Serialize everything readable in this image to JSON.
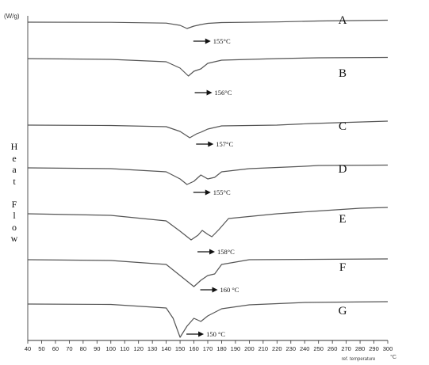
{
  "chart_data": {
    "type": "line",
    "ylabel_unit": "(W/g)",
    "ylabel": "Heat Flow",
    "xlabel": "ref. temperature",
    "xunit": "°C",
    "xlim": [
      40,
      300
    ],
    "xticks": [
      40,
      50,
      60,
      70,
      80,
      90,
      100,
      110,
      120,
      130,
      140,
      150,
      160,
      170,
      180,
      190,
      200,
      210,
      220,
      230,
      240,
      250,
      260,
      270,
      280,
      290,
      300
    ],
    "series": [
      {
        "name": "A",
        "annotation": "155°C",
        "peak_x": 155,
        "points": [
          [
            40,
            0
          ],
          [
            100,
            0.2
          ],
          [
            140,
            1.2
          ],
          [
            150,
            4
          ],
          [
            155,
            8
          ],
          [
            160,
            5
          ],
          [
            165,
            3
          ],
          [
            170,
            1.5
          ],
          [
            180,
            0.5
          ],
          [
            220,
            -0.3
          ],
          [
            250,
            -1.5
          ],
          [
            300,
            -2.5
          ]
        ]
      },
      {
        "name": "B",
        "annotation": "156°C",
        "peak_x": 156,
        "points": [
          [
            40,
            0
          ],
          [
            100,
            1
          ],
          [
            140,
            4
          ],
          [
            150,
            12
          ],
          [
            156,
            22
          ],
          [
            160,
            16
          ],
          [
            165,
            13
          ],
          [
            170,
            6
          ],
          [
            180,
            2
          ],
          [
            220,
            0
          ],
          [
            250,
            -1
          ],
          [
            300,
            -1.5
          ]
        ]
      },
      {
        "name": "C",
        "annotation": "157°C",
        "peak_x": 157,
        "points": [
          [
            40,
            0
          ],
          [
            100,
            0.5
          ],
          [
            140,
            2
          ],
          [
            150,
            8
          ],
          [
            157,
            16
          ],
          [
            162,
            11
          ],
          [
            165,
            9
          ],
          [
            170,
            5
          ],
          [
            180,
            1
          ],
          [
            220,
            0
          ],
          [
            245,
            -2
          ],
          [
            300,
            -5
          ]
        ]
      },
      {
        "name": "D",
        "annotation": "155°C",
        "peak_x": 155,
        "points": [
          [
            40,
            0
          ],
          [
            100,
            1
          ],
          [
            140,
            5
          ],
          [
            150,
            14
          ],
          [
            155,
            21
          ],
          [
            160,
            17
          ],
          [
            165,
            9
          ],
          [
            170,
            14
          ],
          [
            175,
            12
          ],
          [
            180,
            5
          ],
          [
            200,
            1
          ],
          [
            240,
            -2
          ],
          [
            250,
            -3
          ],
          [
            300,
            -3.5
          ]
        ]
      },
      {
        "name": "E",
        "annotation": "158°C",
        "peak_x": 158,
        "points": [
          [
            40,
            0
          ],
          [
            100,
            2
          ],
          [
            140,
            9
          ],
          [
            150,
            22
          ],
          [
            158,
            33
          ],
          [
            163,
            27
          ],
          [
            166,
            21
          ],
          [
            170,
            26
          ],
          [
            173,
            29
          ],
          [
            178,
            20
          ],
          [
            185,
            6
          ],
          [
            220,
            0
          ],
          [
            245,
            -3
          ],
          [
            280,
            -7
          ],
          [
            300,
            -8
          ]
        ]
      },
      {
        "name": "F",
        "annotation": "160 °C",
        "peak_x": 160,
        "points": [
          [
            40,
            0
          ],
          [
            100,
            1
          ],
          [
            140,
            6
          ],
          [
            150,
            20
          ],
          [
            160,
            34
          ],
          [
            165,
            26
          ],
          [
            170,
            20
          ],
          [
            175,
            18
          ],
          [
            180,
            6
          ],
          [
            200,
            0
          ],
          [
            300,
            -1
          ]
        ]
      },
      {
        "name": "G",
        "annotation": "150 °C",
        "peak_x": 150,
        "points": [
          [
            40,
            0
          ],
          [
            100,
            0.5
          ],
          [
            140,
            5
          ],
          [
            145,
            18
          ],
          [
            150,
            42
          ],
          [
            155,
            28
          ],
          [
            160,
            18
          ],
          [
            165,
            22
          ],
          [
            170,
            15
          ],
          [
            180,
            6
          ],
          [
            200,
            1
          ],
          [
            240,
            -2
          ],
          [
            300,
            -3
          ]
        ]
      }
    ]
  }
}
